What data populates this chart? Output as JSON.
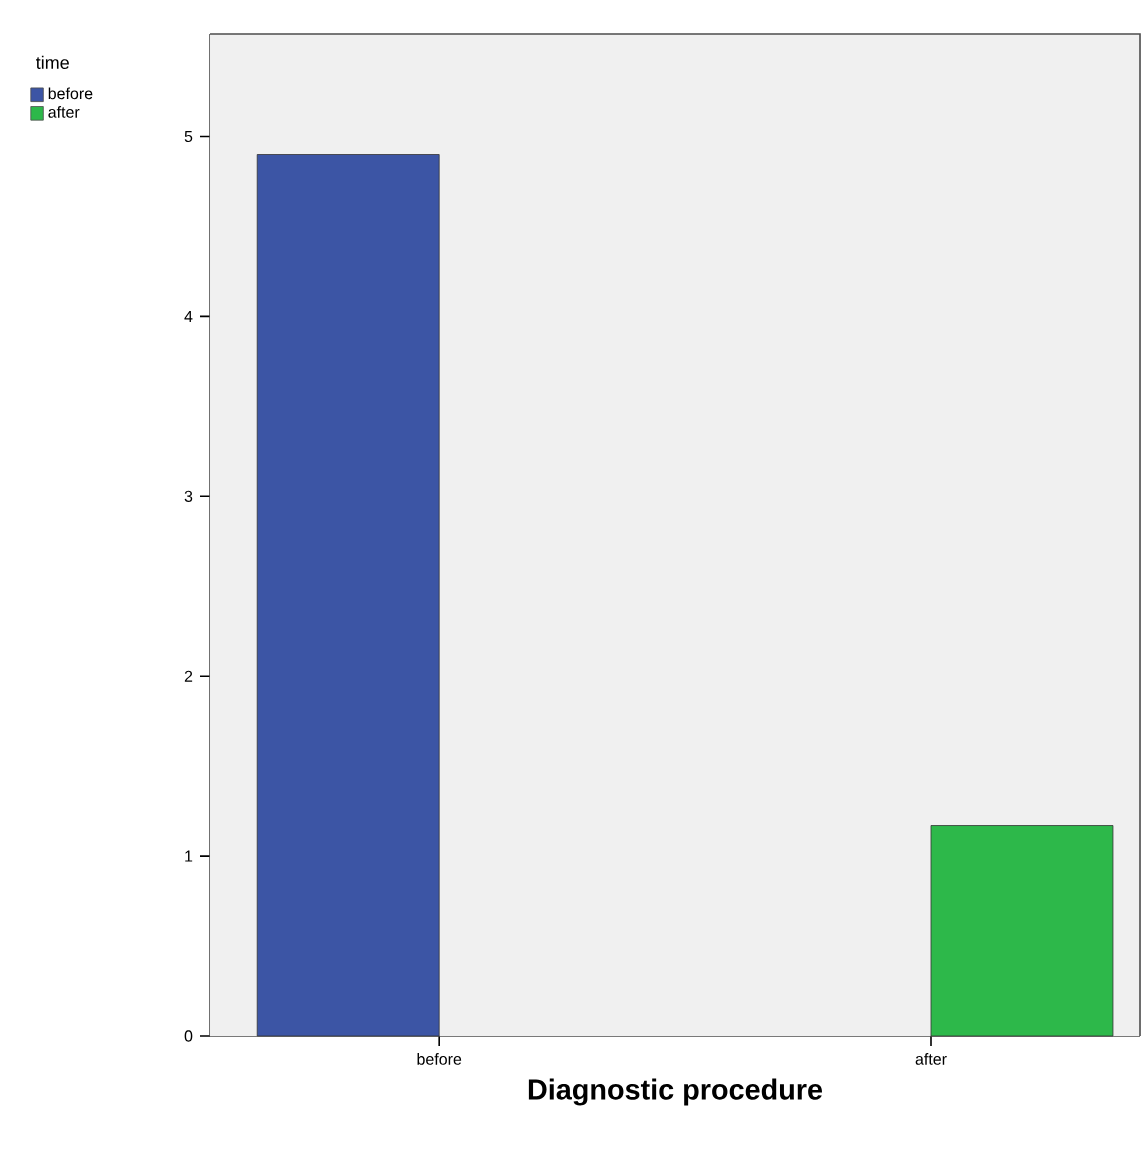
{
  "chart_data": {
    "type": "bar",
    "xlabel": "Diagnostic procedure",
    "legend_title": "time",
    "legend": "top left",
    "categories": [
      "before",
      "after"
    ],
    "series": [
      {
        "name": "before",
        "color": "#3c55a5",
        "values": [
          4.9,
          null
        ]
      },
      {
        "name": "after",
        "color": "#2db84a",
        "values": [
          null,
          1.17
        ]
      }
    ],
    "ylim": [
      0,
      5.57
    ],
    "yticks": [
      0,
      1,
      2,
      3,
      4,
      5
    ]
  }
}
